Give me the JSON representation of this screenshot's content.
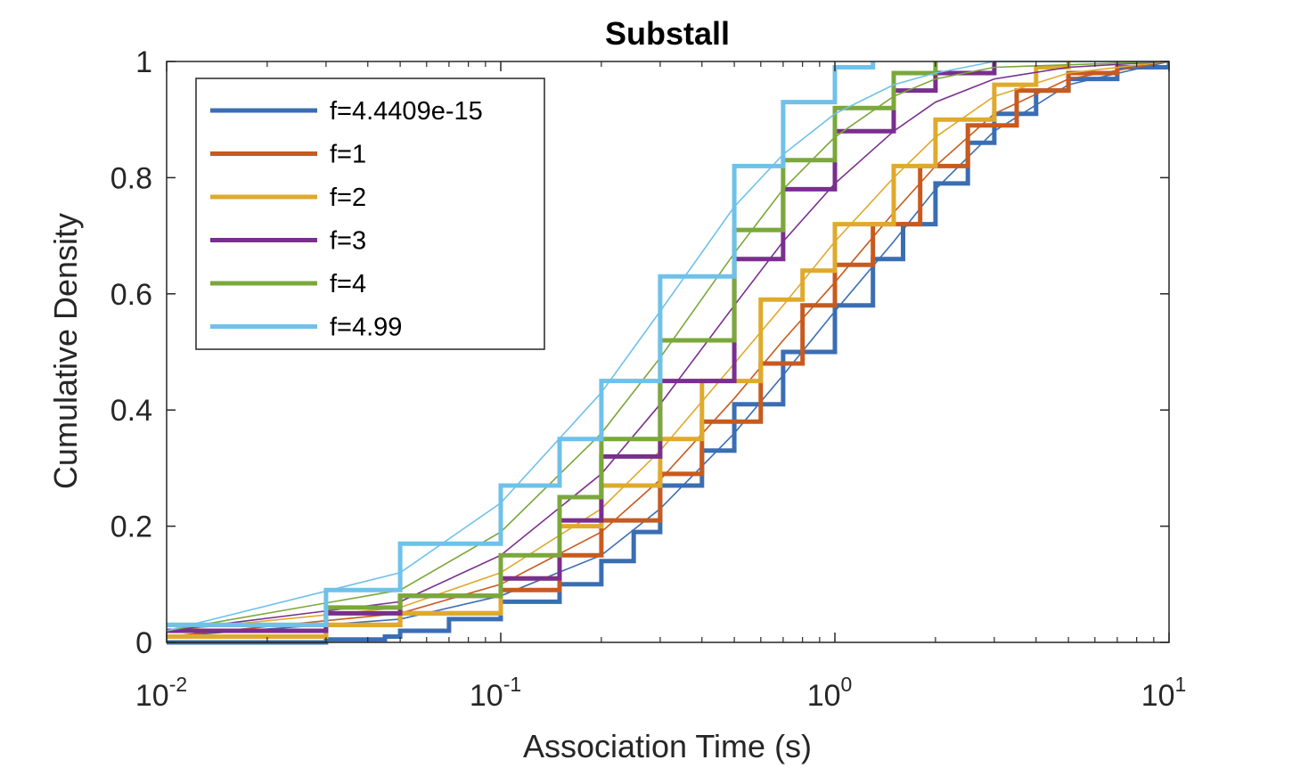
{
  "chart_data": {
    "type": "line",
    "title": "Substall",
    "xlabel": "Association Time (s)",
    "ylabel": "Cumulative Density",
    "xscale": "log",
    "xlim": [
      0.01,
      10
    ],
    "ylim": [
      0,
      1
    ],
    "x_ticks": [
      {
        "value": 0.01,
        "base": "10",
        "exp": "-2"
      },
      {
        "value": 0.1,
        "base": "10",
        "exp": "-1"
      },
      {
        "value": 1,
        "base": "10",
        "exp": "0"
      },
      {
        "value": 10,
        "base": "10",
        "exp": "1"
      }
    ],
    "y_ticks": [
      {
        "value": 0,
        "label": "0"
      },
      {
        "value": 0.2,
        "label": "0.2"
      },
      {
        "value": 0.4,
        "label": "0.4"
      },
      {
        "value": 0.6,
        "label": "0.6"
      },
      {
        "value": 0.8,
        "label": "0.8"
      },
      {
        "value": 1,
        "label": "1"
      }
    ],
    "grid": false,
    "legend_position": "top-left",
    "series": [
      {
        "name": "f=4.4409e-15",
        "color": "#3a6eb3",
        "empirical": [
          [
            0.01,
            0.0
          ],
          [
            0.03,
            0.005
          ],
          [
            0.045,
            0.01
          ],
          [
            0.05,
            0.02
          ],
          [
            0.07,
            0.04
          ],
          [
            0.1,
            0.07
          ],
          [
            0.15,
            0.1
          ],
          [
            0.2,
            0.14
          ],
          [
            0.25,
            0.19
          ],
          [
            0.3,
            0.27
          ],
          [
            0.4,
            0.33
          ],
          [
            0.5,
            0.41
          ],
          [
            0.7,
            0.5
          ],
          [
            1.0,
            0.58
          ],
          [
            1.3,
            0.66
          ],
          [
            1.6,
            0.72
          ],
          [
            2.0,
            0.79
          ],
          [
            2.5,
            0.86
          ],
          [
            3.0,
            0.91
          ],
          [
            4.0,
            0.95
          ],
          [
            5.0,
            0.97
          ],
          [
            7.0,
            0.99
          ],
          [
            10.0,
            1.0
          ]
        ],
        "fit": [
          [
            0.01,
            0.01
          ],
          [
            0.05,
            0.04
          ],
          [
            0.1,
            0.08
          ],
          [
            0.2,
            0.15
          ],
          [
            0.3,
            0.23
          ],
          [
            0.5,
            0.36
          ],
          [
            0.7,
            0.46
          ],
          [
            1.0,
            0.57
          ],
          [
            1.5,
            0.69
          ],
          [
            2.0,
            0.78
          ],
          [
            3.0,
            0.88
          ],
          [
            5.0,
            0.96
          ],
          [
            10.0,
            1.0
          ]
        ]
      },
      {
        "name": "f=1",
        "color": "#c85a1e",
        "empirical": [
          [
            0.01,
            0.01
          ],
          [
            0.03,
            0.03
          ],
          [
            0.05,
            0.05
          ],
          [
            0.1,
            0.09
          ],
          [
            0.15,
            0.15
          ],
          [
            0.2,
            0.21
          ],
          [
            0.3,
            0.29
          ],
          [
            0.4,
            0.38
          ],
          [
            0.6,
            0.48
          ],
          [
            0.8,
            0.58
          ],
          [
            1.0,
            0.65
          ],
          [
            1.3,
            0.72
          ],
          [
            1.8,
            0.82
          ],
          [
            2.5,
            0.89
          ],
          [
            3.5,
            0.95
          ],
          [
            5.0,
            0.98
          ],
          [
            7.0,
            1.0
          ]
        ],
        "fit": [
          [
            0.01,
            0.01
          ],
          [
            0.05,
            0.05
          ],
          [
            0.1,
            0.1
          ],
          [
            0.2,
            0.19
          ],
          [
            0.3,
            0.28
          ],
          [
            0.5,
            0.42
          ],
          [
            0.7,
            0.52
          ],
          [
            1.0,
            0.62
          ],
          [
            1.5,
            0.74
          ],
          [
            2.0,
            0.82
          ],
          [
            3.0,
            0.91
          ],
          [
            5.0,
            0.97
          ],
          [
            10.0,
            1.0
          ]
        ]
      },
      {
        "name": "f=2",
        "color": "#dfaa2c",
        "empirical": [
          [
            0.01,
            0.01
          ],
          [
            0.03,
            0.03
          ],
          [
            0.05,
            0.05
          ],
          [
            0.1,
            0.11
          ],
          [
            0.15,
            0.2
          ],
          [
            0.2,
            0.27
          ],
          [
            0.3,
            0.35
          ],
          [
            0.4,
            0.45
          ],
          [
            0.6,
            0.59
          ],
          [
            0.8,
            0.64
          ],
          [
            1.0,
            0.72
          ],
          [
            1.5,
            0.82
          ],
          [
            2.0,
            0.9
          ],
          [
            3.0,
            0.96
          ],
          [
            4.0,
            0.99
          ],
          [
            5.0,
            1.0
          ]
        ],
        "fit": [
          [
            0.01,
            0.02
          ],
          [
            0.05,
            0.06
          ],
          [
            0.1,
            0.12
          ],
          [
            0.2,
            0.23
          ],
          [
            0.3,
            0.33
          ],
          [
            0.5,
            0.48
          ],
          [
            0.7,
            0.58
          ],
          [
            1.0,
            0.69
          ],
          [
            1.5,
            0.8
          ],
          [
            2.0,
            0.87
          ],
          [
            3.0,
            0.94
          ],
          [
            5.0,
            0.98
          ],
          [
            10.0,
            1.0
          ]
        ]
      },
      {
        "name": "f=3",
        "color": "#7a2e8e",
        "empirical": [
          [
            0.01,
            0.02
          ],
          [
            0.03,
            0.05
          ],
          [
            0.05,
            0.08
          ],
          [
            0.1,
            0.11
          ],
          [
            0.15,
            0.21
          ],
          [
            0.2,
            0.32
          ],
          [
            0.3,
            0.45
          ],
          [
            0.5,
            0.66
          ],
          [
            0.7,
            0.78
          ],
          [
            1.0,
            0.88
          ],
          [
            1.5,
            0.95
          ],
          [
            2.0,
            0.98
          ],
          [
            3.0,
            1.0
          ]
        ],
        "fit": [
          [
            0.01,
            0.02
          ],
          [
            0.05,
            0.07
          ],
          [
            0.1,
            0.15
          ],
          [
            0.2,
            0.29
          ],
          [
            0.3,
            0.41
          ],
          [
            0.5,
            0.58
          ],
          [
            0.7,
            0.69
          ],
          [
            1.0,
            0.79
          ],
          [
            1.5,
            0.88
          ],
          [
            2.0,
            0.93
          ],
          [
            3.0,
            0.97
          ],
          [
            5.0,
            0.99
          ],
          [
            10.0,
            1.0
          ]
        ]
      },
      {
        "name": "f=4",
        "color": "#7aa83a",
        "empirical": [
          [
            0.01,
            0.03
          ],
          [
            0.03,
            0.06
          ],
          [
            0.05,
            0.08
          ],
          [
            0.1,
            0.15
          ],
          [
            0.15,
            0.25
          ],
          [
            0.2,
            0.35
          ],
          [
            0.3,
            0.52
          ],
          [
            0.5,
            0.71
          ],
          [
            0.7,
            0.83
          ],
          [
            1.0,
            0.92
          ],
          [
            1.5,
            0.98
          ],
          [
            2.0,
            1.0
          ]
        ],
        "fit": [
          [
            0.01,
            0.02
          ],
          [
            0.05,
            0.09
          ],
          [
            0.1,
            0.19
          ],
          [
            0.2,
            0.36
          ],
          [
            0.3,
            0.49
          ],
          [
            0.5,
            0.67
          ],
          [
            0.7,
            0.78
          ],
          [
            1.0,
            0.87
          ],
          [
            1.5,
            0.94
          ],
          [
            2.0,
            0.97
          ],
          [
            3.0,
            0.99
          ],
          [
            10.0,
            1.0
          ]
        ]
      },
      {
        "name": "f=4.99",
        "color": "#6fc1ea",
        "empirical": [
          [
            0.01,
            0.03
          ],
          [
            0.03,
            0.09
          ],
          [
            0.05,
            0.17
          ],
          [
            0.1,
            0.27
          ],
          [
            0.15,
            0.35
          ],
          [
            0.2,
            0.45
          ],
          [
            0.3,
            0.63
          ],
          [
            0.5,
            0.82
          ],
          [
            0.7,
            0.93
          ],
          [
            1.0,
            0.99
          ],
          [
            1.3,
            1.0
          ]
        ],
        "fit": [
          [
            0.01,
            0.02
          ],
          [
            0.05,
            0.12
          ],
          [
            0.1,
            0.24
          ],
          [
            0.2,
            0.43
          ],
          [
            0.3,
            0.57
          ],
          [
            0.5,
            0.75
          ],
          [
            0.7,
            0.84
          ],
          [
            1.0,
            0.91
          ],
          [
            1.5,
            0.96
          ],
          [
            2.0,
            0.98
          ],
          [
            3.0,
            1.0
          ],
          [
            10.0,
            1.0
          ]
        ]
      }
    ]
  }
}
